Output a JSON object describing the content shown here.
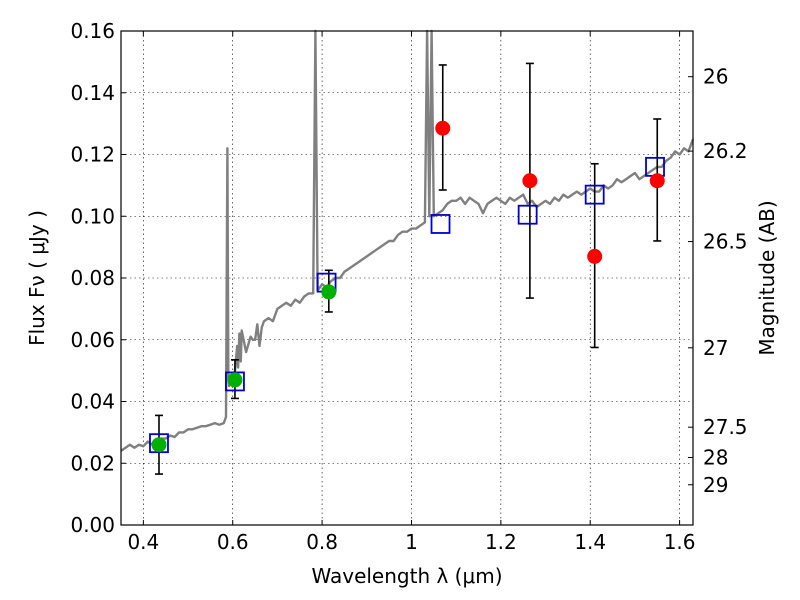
{
  "chart_data": {
    "type": "line",
    "xlabel": "Wavelength  λ (μm)",
    "ylabel": "Flux  Fν  ( μJy )",
    "ylabel_right": "Magnitude (AB)",
    "xlim": [
      0.35,
      1.63
    ],
    "ylim": [
      0.0,
      0.16
    ],
    "grid": true,
    "x_ticks": [
      0.4,
      0.6,
      0.8,
      1.0,
      1.2,
      1.4,
      1.6
    ],
    "x_tick_labels": [
      "0.4",
      "0.6",
      "0.8",
      "1",
      "1.2",
      "1.4",
      "1.6"
    ],
    "y_ticks": [
      0.0,
      0.02,
      0.04,
      0.06,
      0.08,
      0.1,
      0.12,
      0.14,
      0.16
    ],
    "y_tick_labels": [
      "0.00",
      "0.02",
      "0.04",
      "0.06",
      "0.08",
      "0.10",
      "0.12",
      "0.14",
      "0.16"
    ],
    "right_ticks": [
      {
        "flux": 0.01303,
        "label": "29"
      },
      {
        "flux": 0.02187,
        "label": "28"
      },
      {
        "flux": 0.03168,
        "label": "27.5"
      },
      {
        "flux": 0.05739,
        "label": "27"
      },
      {
        "flux": 0.0918,
        "label": "26.5"
      },
      {
        "flux": 0.1211,
        "label": "26.2"
      },
      {
        "flux": 0.1452,
        "label": "26"
      }
    ],
    "series": [
      {
        "style": "spectrum",
        "color": "#808080",
        "x": [
          0.35,
          0.36,
          0.37,
          0.38,
          0.39,
          0.4,
          0.41,
          0.42,
          0.43,
          0.44,
          0.45,
          0.46,
          0.47,
          0.48,
          0.49,
          0.5,
          0.51,
          0.52,
          0.53,
          0.54,
          0.55,
          0.56,
          0.57,
          0.58,
          0.585,
          0.588,
          0.59,
          0.592,
          0.596,
          0.6,
          0.605,
          0.61,
          0.612,
          0.615,
          0.618,
          0.62,
          0.63,
          0.64,
          0.645,
          0.65,
          0.655,
          0.66,
          0.665,
          0.67,
          0.68,
          0.69,
          0.7,
          0.71,
          0.72,
          0.73,
          0.74,
          0.75,
          0.76,
          0.77,
          0.78,
          0.785,
          0.79,
          0.795,
          0.8,
          0.81,
          0.82,
          0.83,
          0.84,
          0.85,
          0.86,
          0.87,
          0.88,
          0.89,
          0.9,
          0.91,
          0.92,
          0.93,
          0.94,
          0.95,
          0.96,
          0.97,
          0.98,
          0.99,
          1.0,
          1.01,
          1.02,
          1.03,
          1.035,
          1.04,
          1.045,
          1.05,
          1.06,
          1.07,
          1.08,
          1.09,
          1.1,
          1.11,
          1.12,
          1.13,
          1.14,
          1.15,
          1.16,
          1.17,
          1.18,
          1.19,
          1.2,
          1.21,
          1.22,
          1.23,
          1.24,
          1.25,
          1.26,
          1.27,
          1.28,
          1.29,
          1.3,
          1.31,
          1.32,
          1.33,
          1.34,
          1.35,
          1.36,
          1.37,
          1.38,
          1.39,
          1.4,
          1.41,
          1.42,
          1.43,
          1.44,
          1.45,
          1.46,
          1.47,
          1.48,
          1.49,
          1.5,
          1.51,
          1.52,
          1.53,
          1.54,
          1.55,
          1.56,
          1.57,
          1.58,
          1.59,
          1.6,
          1.61,
          1.62,
          1.63
        ],
        "y": [
          0.024,
          0.025,
          0.026,
          0.025,
          0.026,
          0.0255,
          0.027,
          0.026,
          0.0275,
          0.028,
          0.028,
          0.029,
          0.0285,
          0.03,
          0.03,
          0.031,
          0.031,
          0.0315,
          0.032,
          0.032,
          0.0325,
          0.033,
          0.0325,
          0.033,
          0.035,
          0.122,
          0.05,
          0.045,
          0.046,
          0.047,
          0.05,
          0.058,
          0.051,
          0.062,
          0.053,
          0.063,
          0.056,
          0.061,
          0.06,
          0.06,
          0.065,
          0.058,
          0.064,
          0.066,
          0.067,
          0.066,
          0.07,
          0.071,
          0.072,
          0.071,
          0.073,
          0.072,
          0.074,
          0.075,
          0.075,
          0.16,
          0.076,
          0.077,
          0.078,
          0.077,
          0.079,
          0.08,
          0.08,
          0.082,
          0.083,
          0.084,
          0.085,
          0.086,
          0.087,
          0.088,
          0.089,
          0.09,
          0.091,
          0.092,
          0.092,
          0.094,
          0.095,
          0.095,
          0.096,
          0.096,
          0.097,
          0.098,
          0.16,
          0.1,
          0.16,
          0.1,
          0.101,
          0.102,
          0.104,
          0.105,
          0.105,
          0.106,
          0.104,
          0.106,
          0.105,
          0.104,
          0.101,
          0.104,
          0.105,
          0.106,
          0.105,
          0.104,
          0.106,
          0.105,
          0.106,
          0.107,
          0.104,
          0.105,
          0.103,
          0.104,
          0.105,
          0.104,
          0.106,
          0.105,
          0.107,
          0.106,
          0.107,
          0.108,
          0.107,
          0.108,
          0.109,
          0.108,
          0.108,
          0.11,
          0.109,
          0.11,
          0.112,
          0.111,
          0.112,
          0.113,
          0.114,
          0.112,
          0.113,
          0.114,
          0.115,
          0.116,
          0.116,
          0.118,
          0.119,
          0.121,
          0.12,
          0.122,
          0.121,
          0.125
        ]
      },
      {
        "style": "squares",
        "color": "#0000cc",
        "x": [
          0.435,
          0.605,
          0.81,
          1.065,
          1.26,
          1.41,
          1.545
        ],
        "y": [
          0.0265,
          0.0465,
          0.0785,
          0.0975,
          0.1005,
          0.107,
          0.116
        ]
      },
      {
        "style": "points",
        "color": "#00b000",
        "x": [
          0.435,
          0.605,
          0.815
        ],
        "y": [
          0.026,
          0.047,
          0.0755
        ],
        "yerr_low": [
          0.0165,
          0.041,
          0.069
        ],
        "yerr_high": [
          0.0355,
          0.0535,
          0.0825
        ]
      },
      {
        "style": "points",
        "color": "#ff0000",
        "x": [
          1.07,
          1.265,
          1.41,
          1.55
        ],
        "y": [
          0.1285,
          0.1115,
          0.087,
          0.1115
        ],
        "yerr_low": [
          0.1085,
          0.0735,
          0.0575,
          0.092
        ],
        "yerr_high": [
          0.149,
          0.1495,
          0.117,
          0.1315
        ]
      }
    ]
  }
}
